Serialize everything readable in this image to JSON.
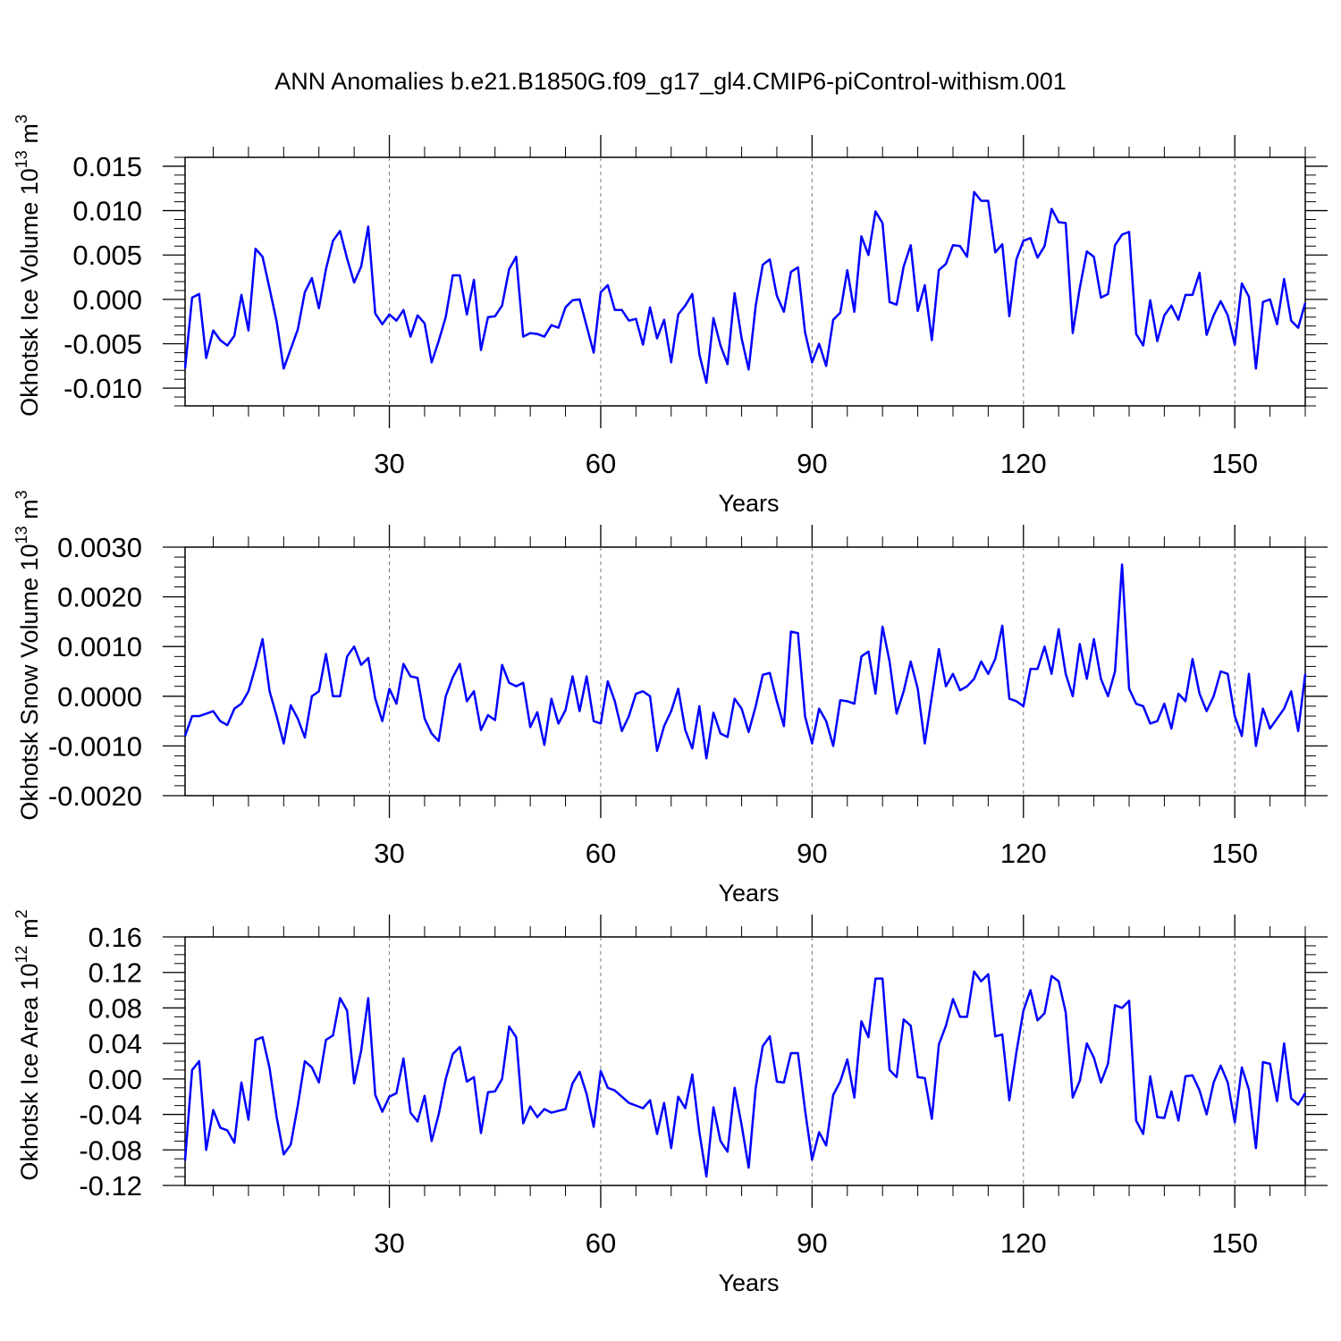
{
  "title": "ANN Anomalies b.e21.B1850G.f09_g17_gl4.CMIP6-piControl-withism.001",
  "line_color": "#0000ff",
  "chart_data": [
    {
      "type": "line",
      "name": "ice-volume",
      "ylabel": {
        "main": "Okhotsk Ice Volume 10",
        "exp": "13",
        "unit": " m",
        "unit_exp": "3"
      },
      "xlabel": "Years",
      "xlim": [
        1,
        160
      ],
      "ylim": [
        -0.012,
        0.016
      ],
      "xticks": [
        30,
        60,
        90,
        120,
        150
      ],
      "xtick_labels": [
        "30",
        "60",
        "90",
        "120",
        "150"
      ],
      "yticks": [
        -0.01,
        -0.005,
        0.0,
        0.005,
        0.01,
        0.015
      ],
      "ytick_labels": [
        "-0.010",
        "-0.005",
        "0.000",
        "0.005",
        "0.010",
        "0.015"
      ],
      "yminor_step": 0.001,
      "x_start": 1,
      "values": [
        -0.0078,
        0.0002,
        0.0006,
        -0.0066,
        -0.0035,
        -0.0046,
        -0.0052,
        -0.0041,
        0.0005,
        -0.0035,
        0.0057,
        0.0048,
        0.0012,
        -0.0025,
        -0.0078,
        -0.0056,
        -0.0034,
        0.0008,
        0.0024,
        -0.001,
        0.0034,
        0.0066,
        0.0077,
        0.0046,
        0.0019,
        0.0037,
        0.0082,
        -0.0016,
        -0.0028,
        -0.0017,
        -0.0024,
        -0.0012,
        -0.0042,
        -0.0018,
        -0.0027,
        -0.0071,
        -0.0047,
        -0.002,
        0.0027,
        0.0027,
        -0.0017,
        0.0022,
        -0.0057,
        -0.002,
        -0.0019,
        -0.0007,
        0.0034,
        0.0048,
        -0.0042,
        -0.0038,
        -0.0039,
        -0.0042,
        -0.0029,
        -0.0032,
        -0.0009,
        -0.0001,
        0.0,
        -0.003,
        -0.006,
        0.0008,
        0.0016,
        -0.0012,
        -0.0012,
        -0.0024,
        -0.0022,
        -0.0051,
        -0.0009,
        -0.0044,
        -0.0023,
        -0.0071,
        -0.0017,
        -0.0007,
        0.0006,
        -0.0062,
        -0.0094,
        -0.0021,
        -0.0052,
        -0.0073,
        0.0007,
        -0.0044,
        -0.0079,
        -0.0007,
        0.0039,
        0.0045,
        0.0004,
        -0.0014,
        0.0031,
        0.0036,
        -0.0037,
        -0.0071,
        -0.005,
        -0.0075,
        -0.0023,
        -0.0015,
        0.0033,
        -0.0014,
        0.0071,
        0.005,
        0.0099,
        0.0086,
        -0.0003,
        -0.0006,
        0.0037,
        0.0061,
        -0.0013,
        0.0016,
        -0.0046,
        0.0033,
        0.004,
        0.0061,
        0.006,
        0.0048,
        0.0121,
        0.0111,
        0.0111,
        0.0053,
        0.0062,
        -0.0019,
        0.0045,
        0.0066,
        0.0069,
        0.0047,
        0.006,
        0.0102,
        0.0087,
        0.0086,
        -0.0038,
        0.0013,
        0.0054,
        0.0048,
        0.0002,
        0.0006,
        0.0061,
        0.0073,
        0.0076,
        -0.0039,
        -0.0052,
        -0.0001,
        -0.0047,
        -0.0018,
        -0.0007,
        -0.0023,
        0.0005,
        0.0005,
        0.003,
        -0.004,
        -0.0018,
        -0.0002,
        -0.0018,
        -0.0051,
        0.0018,
        0.0003,
        -0.0078,
        -0.0003,
        0.0,
        -0.0028,
        0.0023,
        -0.0024,
        -0.0032,
        -0.0004
      ]
    },
    {
      "type": "line",
      "name": "snow-volume",
      "ylabel": {
        "main": "Okhotsk Snow Volume 10",
        "exp": "13",
        "unit": " m",
        "unit_exp": "3"
      },
      "xlabel": "Years",
      "xlim": [
        1,
        160
      ],
      "ylim": [
        -0.002,
        0.003
      ],
      "xticks": [
        30,
        60,
        90,
        120,
        150
      ],
      "xtick_labels": [
        "30",
        "60",
        "90",
        "120",
        "150"
      ],
      "yticks": [
        -0.002,
        -0.001,
        0.0,
        0.001,
        0.002,
        0.003
      ],
      "ytick_labels": [
        "-0.0020",
        "-0.0010",
        "0.0000",
        "0.0010",
        "0.0020",
        "0.0030"
      ],
      "yminor_step": 0.0002,
      "x_start": 1,
      "values": [
        -0.0008,
        -0.0004,
        -0.0004,
        -0.00035,
        -0.0003,
        -0.0005,
        -0.00058,
        -0.00025,
        -0.00015,
        0.0001,
        0.0006,
        0.00115,
        0.0001,
        -0.0004,
        -0.00095,
        -0.00018,
        -0.00045,
        -0.00083,
        0.0,
        0.0001,
        0.00085,
        0.0,
        0.0,
        0.0008,
        0.001,
        0.00063,
        0.00077,
        -5e-05,
        -0.0005,
        0.00015,
        -0.00015,
        0.00065,
        0.0004,
        0.00037,
        -0.00045,
        -0.00075,
        -0.0009,
        0.0,
        0.00038,
        0.00065,
        -0.0001,
        0.0001,
        -0.00068,
        -0.00038,
        -0.00048,
        0.00063,
        0.00027,
        0.0002,
        0.00027,
        -0.00062,
        -0.00032,
        -0.00098,
        -5e-05,
        -0.00055,
        -0.00028,
        0.0004,
        -0.0003,
        0.0004,
        -0.0005,
        -0.00055,
        0.0003,
        -0.0001,
        -0.0007,
        -0.0004,
        5e-05,
        0.0001,
        0.0,
        -0.0011,
        -0.0006,
        -0.0003,
        0.00015,
        -0.00068,
        -0.00105,
        -0.0002,
        -0.00125,
        -0.00033,
        -0.00075,
        -0.00082,
        -5e-05,
        -0.00025,
        -0.00072,
        -0.0002,
        0.00043,
        0.00047,
        -0.0001,
        -0.0006,
        0.0013,
        0.00127,
        -0.0004,
        -0.00095,
        -0.00025,
        -0.0005,
        -0.001,
        -8e-05,
        -0.0001,
        -0.00015,
        0.0008,
        0.0009,
        5e-05,
        0.0014,
        0.0007,
        -0.00035,
        0.0001,
        0.0007,
        0.00015,
        -0.00095,
        0.0,
        0.00095,
        0.0002,
        0.00045,
        0.00012,
        0.0002,
        0.00035,
        0.0007,
        0.00045,
        0.00075,
        0.00142,
        -5e-05,
        -0.0001,
        -0.0002,
        0.00055,
        0.00055,
        0.001,
        0.00045,
        0.00135,
        0.00045,
        0.0,
        0.00105,
        0.00035,
        0.00115,
        0.00035,
        0.0,
        0.0005,
        0.00265,
        0.00015,
        -0.00015,
        -0.0002,
        -0.00055,
        -0.0005,
        -0.00015,
        -0.00065,
        5e-05,
        -0.0001,
        0.00075,
        5e-05,
        -0.0003,
        0.0,
        0.0005,
        0.00045,
        -0.0004,
        -0.0008,
        0.00045,
        -0.001,
        -0.00025,
        -0.00065,
        -0.00045,
        -0.00025,
        0.0001,
        -0.0007,
        0.00045
      ]
    },
    {
      "type": "line",
      "name": "ice-area",
      "ylabel": {
        "main": "Okhotsk Ice Area 10",
        "exp": "12",
        "unit": " m",
        "unit_exp": "2"
      },
      "xlabel": "Years",
      "xlim": [
        1,
        160
      ],
      "ylim": [
        -0.12,
        0.16
      ],
      "xticks": [
        30,
        60,
        90,
        120,
        150
      ],
      "xtick_labels": [
        "30",
        "60",
        "90",
        "120",
        "150"
      ],
      "yticks": [
        -0.12,
        -0.08,
        -0.04,
        0.0,
        0.04,
        0.08,
        0.12,
        0.16
      ],
      "ytick_labels": [
        "-0.12",
        "-0.08",
        "-0.04",
        "0.00",
        "0.04",
        "0.08",
        "0.12",
        "0.16"
      ],
      "yminor_step": 0.01,
      "x_start": 1,
      "values": [
        -0.092,
        0.01,
        0.02,
        -0.08,
        -0.035,
        -0.055,
        -0.058,
        -0.072,
        -0.004,
        -0.046,
        0.044,
        0.047,
        0.012,
        -0.043,
        -0.085,
        -0.074,
        -0.03,
        0.02,
        0.013,
        -0.004,
        0.044,
        0.049,
        0.091,
        0.077,
        -0.005,
        0.032,
        0.091,
        -0.018,
        -0.037,
        -0.02,
        -0.016,
        0.023,
        -0.038,
        -0.048,
        -0.019,
        -0.07,
        -0.04,
        0.0,
        0.028,
        0.036,
        -0.003,
        0.002,
        -0.061,
        -0.015,
        -0.014,
        0.0,
        0.059,
        0.047,
        -0.05,
        -0.031,
        -0.043,
        -0.034,
        -0.038,
        -0.036,
        -0.034,
        -0.005,
        0.008,
        -0.017,
        -0.054,
        0.009,
        -0.01,
        -0.013,
        -0.02,
        -0.027,
        -0.03,
        -0.033,
        -0.024,
        -0.062,
        -0.027,
        -0.078,
        -0.02,
        -0.033,
        0.005,
        -0.06,
        -0.11,
        -0.032,
        -0.07,
        -0.082,
        -0.01,
        -0.052,
        -0.1,
        -0.01,
        0.037,
        0.048,
        -0.003,
        -0.004,
        0.029,
        0.029,
        -0.035,
        -0.091,
        -0.06,
        -0.075,
        -0.018,
        -0.003,
        0.022,
        -0.021,
        0.065,
        0.047,
        0.113,
        0.113,
        0.01,
        0.002,
        0.067,
        0.06,
        0.002,
        0.001,
        -0.045,
        0.039,
        0.06,
        0.09,
        0.07,
        0.07,
        0.121,
        0.11,
        0.118,
        0.048,
        0.05,
        -0.024,
        0.03,
        0.077,
        0.1,
        0.066,
        0.074,
        0.116,
        0.11,
        0.075,
        -0.021,
        -0.002,
        0.04,
        0.024,
        -0.004,
        0.017,
        0.083,
        0.08,
        0.088,
        -0.047,
        -0.062,
        0.003,
        -0.043,
        -0.044,
        -0.014,
        -0.047,
        0.003,
        0.004,
        -0.013,
        -0.04,
        -0.004,
        0.015,
        -0.004,
        -0.049,
        0.013,
        -0.012,
        -0.078,
        0.019,
        0.017,
        -0.025,
        0.04,
        -0.022,
        -0.029,
        -0.016
      ]
    }
  ]
}
